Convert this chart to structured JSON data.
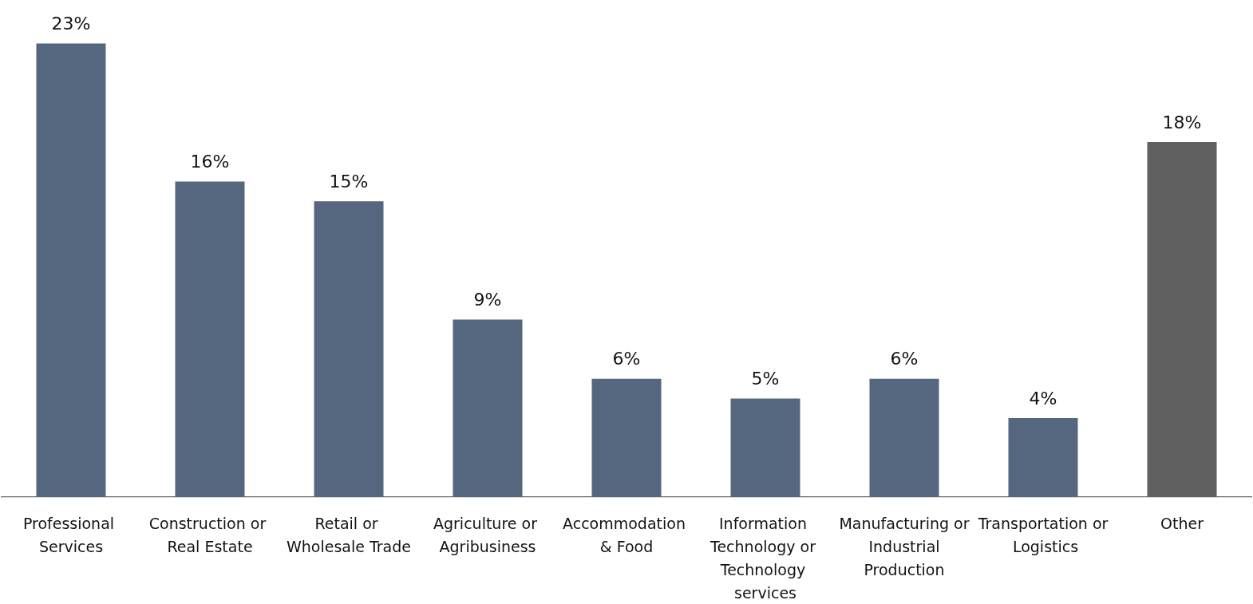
{
  "chart_data": {
    "type": "bar",
    "categories": [
      "Professional Services",
      "Construction or Real Estate",
      "Retail or Wholesale Trade",
      "Agriculture or Agribusiness",
      "Accommodation & Food",
      "Information Technology or Technology services",
      "Manufacturing or Industrial Production",
      "Transportation or Logistics",
      "Other"
    ],
    "values": [
      23,
      16,
      15,
      9,
      6,
      5,
      6,
      4,
      18
    ],
    "colors": [
      "#55667f",
      "#55667f",
      "#55667f",
      "#55667f",
      "#55667f",
      "#55667f",
      "#55667f",
      "#55667f",
      "#5f5f5f"
    ],
    "value_labels": [
      "23%",
      "16%",
      "15%",
      "9%",
      "6%",
      "5%",
      "6%",
      "4%",
      "18%"
    ],
    "grid": false
  }
}
